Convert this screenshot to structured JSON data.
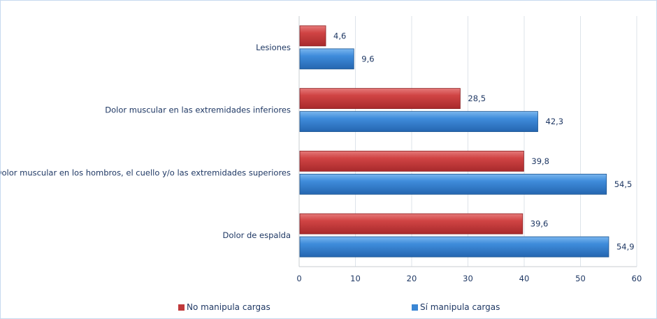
{
  "chart_data": {
    "type": "bar",
    "orientation": "horizontal",
    "categories": [
      "Lesiones",
      "Dolor muscular en las extremidades inferiores",
      "Dolor muscular en los hombros, el cuello y/o las extremidades superiores",
      "Dolor de espalda"
    ],
    "series": [
      {
        "name": "No manipula cargas",
        "color": "#c0393b",
        "values": [
          4.6,
          28.5,
          39.8,
          39.6
        ],
        "labels": [
          "4,6",
          "28,5",
          "39,8",
          "39,6"
        ]
      },
      {
        "name": "Sí manipula cargas",
        "color": "#3a86d4",
        "values": [
          9.6,
          42.3,
          54.5,
          54.9
        ],
        "labels": [
          "9,6",
          "42,3",
          "54,5",
          "54,9"
        ]
      }
    ],
    "xlim": [
      0,
      60
    ],
    "xticks": [
      0,
      10,
      20,
      30,
      40,
      50,
      60
    ],
    "grid": true,
    "legend": "bottom"
  }
}
